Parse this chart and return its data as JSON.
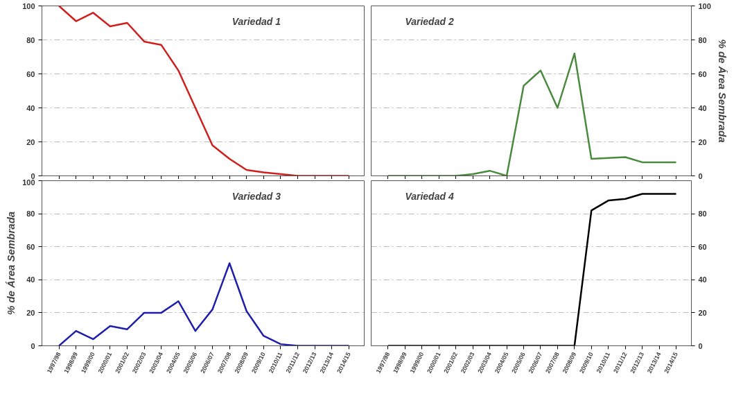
{
  "chart_data": [
    {
      "type": "line",
      "title": "Variedad 1",
      "categories": [
        "1997/98",
        "1998/99",
        "1999/00",
        "2000/01",
        "2001/02",
        "2002/03",
        "2003/04",
        "2004/05",
        "2005/06",
        "2006/07",
        "2007/08",
        "2008/09",
        "2009/10",
        "2010/11",
        "2011/12",
        "2012/13",
        "2013/14",
        "2014/15"
      ],
      "series": [
        {
          "color": "#d0201e",
          "values": [
            100,
            91,
            96,
            88,
            90,
            79,
            77,
            62,
            40,
            18,
            10,
            3.5,
            2,
            1,
            0,
            0,
            0,
            0
          ]
        }
      ],
      "ylim": [
        0,
        100
      ],
      "yticks": [
        0,
        20,
        40,
        60,
        80,
        100
      ],
      "grid": "y",
      "tick_labels": "y"
    },
    {
      "type": "line",
      "title": "Variedad 2",
      "ylabel": "% de Área Sembrada",
      "categories": [
        "1997/98",
        "1998/99",
        "1999/00",
        "2000/01",
        "2001/02",
        "2002/03",
        "2003/04",
        "2004/05",
        "2005/06",
        "2006/07",
        "2007/08",
        "2008/09",
        "2009/10",
        "2010/11",
        "2011/12",
        "2012/13",
        "2013/14",
        "2014/15"
      ],
      "series": [
        {
          "color": "#4a8a3e",
          "values": [
            0,
            0,
            0,
            0,
            0,
            1,
            3,
            0,
            53,
            62,
            40,
            72,
            10,
            10.5,
            11,
            8,
            8,
            8
          ]
        }
      ],
      "ylim": [
        0,
        100
      ],
      "yticks": [
        0,
        20,
        40,
        60,
        80,
        100
      ],
      "grid": "y",
      "tick_labels": "y"
    },
    {
      "type": "line",
      "title": "Variedad 3",
      "ylabel": "% de Área Sembrada",
      "categories": [
        "1997/98",
        "1998/99",
        "1999/00",
        "2000/01",
        "2001/02",
        "2002/03",
        "2003/04",
        "2004/05",
        "2005/06",
        "2006/07",
        "2007/08",
        "2008/09",
        "2009/10",
        "2010/11",
        "2011/12",
        "2012/13",
        "2013/14",
        "2014/15"
      ],
      "series": [
        {
          "color": "#1f1fae",
          "values": [
            0,
            9,
            4,
            12,
            10,
            20,
            20,
            27,
            9,
            22,
            50,
            21,
            6,
            1,
            0,
            0,
            0,
            0
          ]
        }
      ],
      "ylim": [
        0,
        100
      ],
      "yticks": [
        0,
        20,
        40,
        60,
        80,
        100
      ],
      "grid": "y"
    },
    {
      "type": "line",
      "title": "Variedad 4",
      "categories": [
        "1997/98",
        "1998/99",
        "1999/00",
        "2000/01",
        "2001/02",
        "2002/03",
        "2003/04",
        "2004/05",
        "2005/06",
        "2006/07",
        "2007/08",
        "2008/09",
        "2009/10",
        "2010/11",
        "2011/12",
        "2012/13",
        "2013/14",
        "2014/15"
      ],
      "series": [
        {
          "color": "#000000",
          "values": [
            0,
            0,
            0,
            0,
            0,
            0,
            0,
            0,
            0,
            0,
            0,
            0,
            82,
            88,
            89,
            92,
            92,
            92
          ]
        }
      ],
      "ylim": [
        0,
        100
      ],
      "yticks": [
        0,
        20,
        40,
        60,
        80
      ],
      "grid": "y"
    }
  ]
}
